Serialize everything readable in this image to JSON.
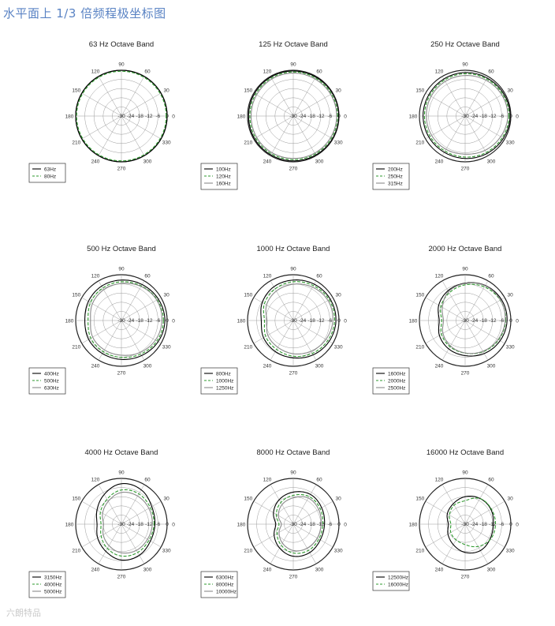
{
  "page": {
    "title": "水平面上 1/3 倍频程极坐标图",
    "watermark": "六朗特品"
  },
  "chart_data": [
    {
      "type": "polar",
      "title": "63 Hz Octave Band",
      "angles": [
        "90",
        "60",
        "30",
        "0",
        "330",
        "300",
        "270",
        "240",
        "210",
        "180",
        "150",
        "120"
      ],
      "rlabels": [
        "-30",
        "-24",
        "-18",
        "-12",
        "-6",
        "0"
      ],
      "rlim": [
        -30,
        0
      ],
      "series": [
        {
          "name": "63Hz",
          "color": "#000000",
          "style": "solid",
          "shape": [
            0,
            0,
            0,
            0,
            0,
            0,
            0,
            0,
            0,
            0,
            0,
            0
          ]
        },
        {
          "name": "80Hz",
          "color": "#2e9a2e",
          "style": "dashed",
          "shape": [
            0,
            0,
            0,
            0,
            0,
            0,
            0,
            0,
            0,
            0,
            0,
            0
          ]
        }
      ]
    },
    {
      "type": "polar",
      "title": "125 Hz Octave Band",
      "angles": [
        "90",
        "60",
        "30",
        "0",
        "330",
        "300",
        "270",
        "240",
        "210",
        "180",
        "150",
        "120"
      ],
      "rlabels": [
        "-30",
        "-24",
        "-18",
        "-12",
        "-6",
        "0"
      ],
      "rlim": [
        -30,
        0
      ],
      "series": [
        {
          "name": "100Hz",
          "color": "#000000",
          "style": "solid",
          "shape": [
            -0.5,
            -0.5,
            -0.3,
            -0.2,
            -0.3,
            -0.5,
            -0.6,
            -0.6,
            -0.6,
            -0.7,
            -0.6,
            -0.5
          ]
        },
        {
          "name": "120Hz",
          "color": "#2e9a2e",
          "style": "dashed",
          "shape": [
            -0.5,
            -0.5,
            -0.4,
            -0.3,
            -0.4,
            -0.6,
            -0.8,
            -0.8,
            -0.8,
            -0.9,
            -0.8,
            -0.6
          ]
        },
        {
          "name": "160Hz",
          "color": "#8a8a8a",
          "style": "solid",
          "shape": [
            -0.6,
            -0.6,
            -0.4,
            -0.3,
            -0.5,
            -0.7,
            -1.0,
            -1.0,
            -1.0,
            -1.1,
            -1.0,
            -0.7
          ]
        }
      ]
    },
    {
      "type": "polar",
      "title": "250 Hz Octave Band",
      "angles": [
        "90",
        "60",
        "30",
        "0",
        "330",
        "300",
        "270",
        "240",
        "210",
        "180",
        "150",
        "120"
      ],
      "rlabels": [
        "-30",
        "-24",
        "-18",
        "-12",
        "-6",
        "0"
      ],
      "rlim": [
        -30,
        0
      ],
      "series": [
        {
          "name": "200Hz",
          "color": "#000000",
          "style": "solid",
          "shape": [
            -1.5,
            -1.2,
            -0.8,
            -0.5,
            -1.0,
            -1.6,
            -2.2,
            -2.6,
            -2.5,
            -2.4,
            -2.4,
            -2.0
          ]
        },
        {
          "name": "250Hz",
          "color": "#2e9a2e",
          "style": "dashed",
          "shape": [
            -1.6,
            -1.3,
            -0.9,
            -0.6,
            -1.2,
            -1.8,
            -2.5,
            -2.9,
            -2.8,
            -2.7,
            -2.6,
            -2.2
          ]
        },
        {
          "name": "315Hz",
          "color": "#8a8a8a",
          "style": "solid",
          "shape": [
            -2.2,
            -1.6,
            -1.0,
            -0.8,
            -1.8,
            -2.8,
            -3.8,
            -3.6,
            -3.4,
            -3.3,
            -3.0,
            -2.6
          ]
        }
      ]
    },
    {
      "type": "polar",
      "title": "500 Hz Octave Band",
      "angles": [
        "90",
        "60",
        "30",
        "0",
        "330",
        "300",
        "270",
        "240",
        "210",
        "180",
        "150",
        "120"
      ],
      "rlabels": [
        "-30",
        "-24",
        "-18",
        "-12",
        "-6",
        "0"
      ],
      "rlim": [
        -30,
        0
      ],
      "series": [
        {
          "name": "400Hz",
          "color": "#000000",
          "style": "solid",
          "shape": [
            -3.5,
            -2.8,
            -2.0,
            -1.5,
            -2.2,
            -3.5,
            -4.5,
            -5.0,
            -5.2,
            -6.0,
            -5.0,
            -4.0
          ]
        },
        {
          "name": "500Hz",
          "color": "#2e9a2e",
          "style": "dashed",
          "shape": [
            -4.0,
            -3.2,
            -2.2,
            -1.8,
            -2.5,
            -4.0,
            -5.2,
            -5.8,
            -6.2,
            -7.5,
            -6.0,
            -4.8
          ]
        },
        {
          "name": "630Hz",
          "color": "#8a8a8a",
          "style": "solid",
          "shape": [
            -4.5,
            -3.0,
            -2.0,
            -2.2,
            -3.0,
            -4.5,
            -6.0,
            -6.5,
            -7.0,
            -8.5,
            -6.8,
            -5.5
          ]
        }
      ]
    },
    {
      "type": "polar",
      "title": "1000 Hz Octave Band",
      "angles": [
        "90",
        "60",
        "30",
        "0",
        "330",
        "300",
        "270",
        "240",
        "210",
        "180",
        "150",
        "120"
      ],
      "rlabels": [
        "-30",
        "-24",
        "-18",
        "-12",
        "-6",
        "0"
      ],
      "rlim": [
        -30,
        0
      ],
      "series": [
        {
          "name": "800Hz",
          "color": "#000000",
          "style": "solid",
          "shape": [
            -3.5,
            -2.5,
            -2.0,
            -2.0,
            -2.8,
            -4.0,
            -5.5,
            -6.5,
            -7.5,
            -9.0,
            -6.5,
            -4.5
          ]
        },
        {
          "name": "1000Hz",
          "color": "#2e9a2e",
          "style": "dashed",
          "shape": [
            -4.0,
            -3.0,
            -2.2,
            -2.3,
            -3.2,
            -4.5,
            -6.0,
            -7.5,
            -8.5,
            -10.5,
            -7.5,
            -5.5
          ]
        },
        {
          "name": "1250Hz",
          "color": "#8a8a8a",
          "style": "solid",
          "shape": [
            -5.0,
            -3.5,
            -2.5,
            -2.8,
            -4.0,
            -5.5,
            -7.0,
            -8.5,
            -9.5,
            -11.5,
            -8.5,
            -6.5
          ]
        }
      ]
    },
    {
      "type": "polar",
      "title": "2000 Hz Octave Band",
      "angles": [
        "90",
        "60",
        "30",
        "0",
        "330",
        "300",
        "270",
        "240",
        "210",
        "180",
        "150",
        "120"
      ],
      "rlabels": [
        "-30",
        "-24",
        "-18",
        "-12",
        "-6",
        "0"
      ],
      "rlim": [
        -30,
        0
      ],
      "series": [
        {
          "name": "1600Hz",
          "color": "#000000",
          "style": "solid",
          "shape": [
            -5.5,
            -3.5,
            -2.5,
            -2.5,
            -3.5,
            -5.0,
            -7.0,
            -8.5,
            -10.5,
            -13.0,
            -10.0,
            -7.5
          ]
        },
        {
          "name": "2000Hz",
          "color": "#2e9a2e",
          "style": "dashed",
          "shape": [
            -6.0,
            -4.0,
            -2.8,
            -2.8,
            -4.0,
            -5.8,
            -8.0,
            -9.5,
            -11.5,
            -14.0,
            -11.0,
            -8.5
          ]
        },
        {
          "name": "2500Hz",
          "color": "#8a8a8a",
          "style": "solid",
          "shape": [
            -4.5,
            -2.5,
            -2.0,
            -2.5,
            -3.8,
            -5.5,
            -7.5,
            -9.5,
            -12.0,
            -14.5,
            -11.5,
            -7.0
          ]
        }
      ]
    },
    {
      "type": "polar",
      "title": "4000 Hz Octave Band",
      "angles": [
        "90",
        "60",
        "30",
        "0",
        "330",
        "300",
        "270",
        "240",
        "210",
        "180",
        "150",
        "120"
      ],
      "rlabels": [
        "-30",
        "-24",
        "-18",
        "-12",
        "-6",
        "0"
      ],
      "rlim": [
        -30,
        0
      ],
      "series": [
        {
          "name": "3150Hz",
          "color": "#000000",
          "style": "solid",
          "shape": [
            -3.5,
            -4.0,
            -7.0,
            -8.0,
            -8.0,
            -6.5,
            -6.5,
            -9.5,
            -12.0,
            -14.0,
            -11.5,
            -7.5
          ]
        },
        {
          "name": "4000Hz",
          "color": "#2e9a2e",
          "style": "dashed",
          "shape": [
            -7.0,
            -6.5,
            -7.5,
            -8.0,
            -8.5,
            -8.0,
            -8.5,
            -11.0,
            -14.0,
            -16.0,
            -13.5,
            -10.5
          ]
        },
        {
          "name": "5000Hz",
          "color": "#8a8a8a",
          "style": "solid",
          "shape": [
            -8.0,
            -7.5,
            -8.0,
            -8.5,
            -9.0,
            -9.0,
            -10.0,
            -12.5,
            -15.0,
            -17.0,
            -14.5,
            -11.5
          ]
        }
      ]
    },
    {
      "type": "polar",
      "title": "8000 Hz Octave Band",
      "angles": [
        "90",
        "60",
        "30",
        "0",
        "330",
        "300",
        "270",
        "240",
        "210",
        "180",
        "150",
        "120"
      ],
      "rlabels": [
        "-30",
        "-24",
        "-18",
        "-12",
        "-6",
        "0"
      ],
      "rlim": [
        -30,
        0
      ],
      "series": [
        {
          "name": "6300Hz",
          "color": "#000000",
          "style": "solid",
          "shape": [
            -9.0,
            -7.5,
            -8.5,
            -9.5,
            -9.5,
            -8.5,
            -9.0,
            -12.0,
            -15.5,
            -18.5,
            -15.0,
            -11.5
          ]
        },
        {
          "name": "8000Hz",
          "color": "#2e9a2e",
          "style": "dashed",
          "shape": [
            -10.5,
            -8.5,
            -9.0,
            -10.0,
            -10.0,
            -9.5,
            -10.5,
            -13.5,
            -17.0,
            -20.0,
            -16.5,
            -13.0
          ]
        },
        {
          "name": "10000Hz",
          "color": "#8a8a8a",
          "style": "solid",
          "shape": [
            -11.5,
            -9.0,
            -9.5,
            -10.5,
            -10.5,
            -10.5,
            -11.5,
            -14.5,
            -18.0,
            -21.0,
            -17.5,
            -14.0
          ]
        }
      ]
    },
    {
      "type": "polar",
      "title": "16000 Hz Octave Band",
      "angles": [
        "90",
        "60",
        "30",
        "0",
        "330",
        "300",
        "270",
        "240",
        "210",
        "180",
        "150",
        "120"
      ],
      "rlabels": [
        "-30",
        "-24",
        "-18",
        "-12",
        "-6",
        "0"
      ],
      "rlim": [
        -30,
        0
      ],
      "series": [
        {
          "name": "12500Hz",
          "color": "#000000",
          "style": "solid",
          "shape": [
            -12.0,
            -10.5,
            -10.5,
            -11.5,
            -11.0,
            -10.0,
            -11.5,
            -14.5,
            -17.0,
            -19.0,
            -16.5,
            -14.5
          ]
        },
        {
          "name": "16000Hz",
          "color": "#2e9a2e",
          "style": "dashed",
          "shape": [
            -14.0,
            -10.0,
            -9.5,
            -9.5,
            -10.0,
            -12.5,
            -16.0,
            -17.5,
            -18.5,
            -20.0,
            -17.5,
            -15.0
          ]
        }
      ]
    }
  ]
}
